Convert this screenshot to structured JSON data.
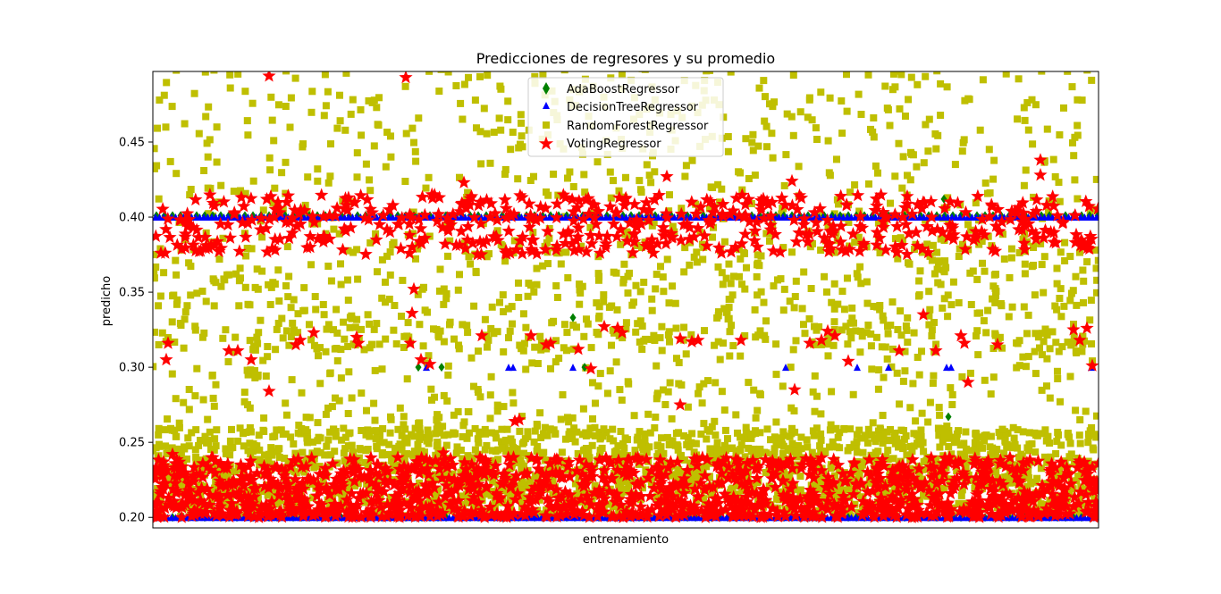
{
  "chart_data": {
    "type": "scatter",
    "title": "Predicciones de regresores y su promedio",
    "xlabel": "entrenamiento",
    "ylabel": "predicho",
    "xticks": "none",
    "ylim": [
      0.193,
      0.497
    ],
    "yticks": [
      0.2,
      0.25,
      0.3,
      0.35,
      0.4,
      0.45
    ],
    "ytick_labels": [
      "0.20",
      "0.25",
      "0.30",
      "0.35",
      "0.40",
      "0.45"
    ],
    "grid": false,
    "legend_position": "upper center",
    "series": [
      {
        "name": "AdaBoostRegressor",
        "marker": "diamond",
        "color": "#008000",
        "points": [
          [
            297,
            0.3
          ],
          [
            323,
            0.3
          ],
          [
            470,
            0.333
          ],
          [
            483,
            0.3
          ],
          [
            885,
            0.412
          ],
          [
            890,
            0.267
          ]
        ]
      },
      {
        "name": "DecisionTreeRegressor",
        "marker": "triangle",
        "color": "#0000ff",
        "levels": [
          0.2,
          0.4
        ],
        "points": [
          [
            306,
            0.3
          ],
          [
            398,
            0.3
          ],
          [
            403,
            0.3
          ],
          [
            470,
            0.3
          ],
          [
            708,
            0.3
          ],
          [
            788,
            0.3
          ],
          [
            823,
            0.3
          ],
          [
            888,
            0.3
          ],
          [
            893,
            0.3
          ],
          [
            1050,
            0.3
          ]
        ]
      },
      {
        "name": "RandomForestRegressor",
        "marker": "square",
        "color": "#bfbf00",
        "distribution": "dense spread between 0.20 and 0.50"
      },
      {
        "name": "VotingRegressor",
        "marker": "star",
        "color": "#ff0000",
        "bands": [
          [
            0.2,
            0.24
          ],
          [
            0.375,
            0.415
          ]
        ],
        "points": [
          [
            130,
            0.494
          ],
          [
            283,
            0.493
          ],
          [
            348,
            0.423
          ],
          [
            575,
            0.427
          ],
          [
            715,
            0.424
          ],
          [
            993,
            0.438
          ],
          [
            993,
            0.428
          ],
          [
            292,
            0.352
          ],
          [
            290,
            0.336
          ],
          [
            15,
            0.305
          ],
          [
            17,
            0.316
          ],
          [
            85,
            0.311
          ],
          [
            95,
            0.311
          ],
          [
            110,
            0.305
          ],
          [
            160,
            0.315
          ],
          [
            165,
            0.318
          ],
          [
            180,
            0.323
          ],
          [
            228,
            0.32
          ],
          [
            230,
            0.316
          ],
          [
            288,
            0.316
          ],
          [
            300,
            0.305
          ],
          [
            310,
            0.302
          ],
          [
            325,
            0.243
          ],
          [
            368,
            0.321
          ],
          [
            405,
            0.264
          ],
          [
            410,
            0.265
          ],
          [
            423,
            0.321
          ],
          [
            440,
            0.315
          ],
          [
            445,
            0.316
          ],
          [
            476,
            0.312
          ],
          [
            490,
            0.299
          ],
          [
            505,
            0.327
          ],
          [
            520,
            0.326
          ],
          [
            525,
            0.323
          ],
          [
            560,
            0.376
          ],
          [
            590,
            0.275
          ],
          [
            590,
            0.319
          ],
          [
            603,
            0.317
          ],
          [
            610,
            0.318
          ],
          [
            658,
            0.318
          ],
          [
            718,
            0.285
          ],
          [
            735,
            0.316
          ],
          [
            748,
            0.318
          ],
          [
            755,
            0.324
          ],
          [
            763,
            0.321
          ],
          [
            778,
            0.304
          ],
          [
            835,
            0.311
          ],
          [
            862,
            0.335
          ],
          [
            876,
            0.311
          ],
          [
            904,
            0.321
          ],
          [
            908,
            0.316
          ],
          [
            912,
            0.29
          ],
          [
            945,
            0.315
          ],
          [
            1030,
            0.325
          ],
          [
            1037,
            0.318
          ],
          [
            1045,
            0.326
          ],
          [
            1051,
            0.301
          ],
          [
            130,
            0.284
          ],
          [
            22,
            0.242
          ]
        ]
      }
    ]
  }
}
